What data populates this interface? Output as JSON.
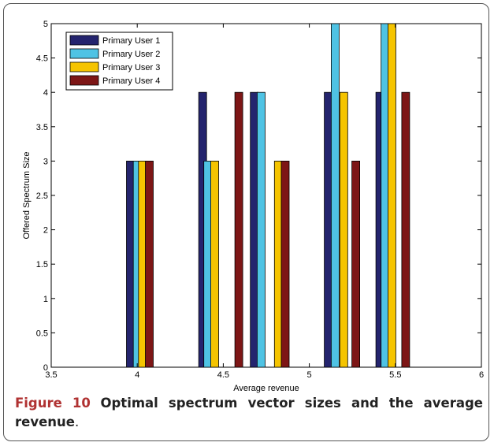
{
  "chart_data": {
    "type": "bar",
    "xlabel": "Average revenue",
    "ylabel": "Offered Spectrum Size",
    "xlim": [
      3.5,
      6
    ],
    "ylim": [
      0,
      5
    ],
    "xticks": [
      "3.5",
      "4",
      "4.5",
      "5",
      "5.5",
      "6"
    ],
    "yticks": [
      "0",
      "0.5",
      "1",
      "1.5",
      "2",
      "2.5",
      "3",
      "3.5",
      "4",
      "4.5",
      "5"
    ],
    "legend_position": "top-left",
    "series": [
      {
        "name": "Primary User 1",
        "color": "#24246e",
        "x": [
          3.96,
          4.38,
          4.68,
          5.11,
          5.41
        ],
        "values": [
          3,
          4,
          4,
          4,
          4
        ]
      },
      {
        "name": "Primary User 2",
        "color": "#4fc3e4",
        "x": [
          4.0,
          4.41,
          4.72,
          5.15,
          5.44
        ],
        "values": [
          3,
          3,
          4,
          5.1,
          5.1
        ]
      },
      {
        "name": "Primary User 3",
        "color": "#f5c400",
        "x": [
          4.03,
          4.45,
          4.82,
          5.2,
          5.48
        ],
        "values": [
          3,
          3,
          3,
          4,
          5.1
        ]
      },
      {
        "name": "Primary User 4",
        "color": "#7d1616",
        "x": [
          4.07,
          4.59,
          4.86,
          5.27,
          5.56
        ],
        "values": [
          3,
          4,
          3,
          3,
          4
        ]
      }
    ]
  },
  "caption": {
    "figure_label": "Figure 10",
    "title": "Optimal spectrum vector sizes and the average revenue",
    "end": "."
  }
}
